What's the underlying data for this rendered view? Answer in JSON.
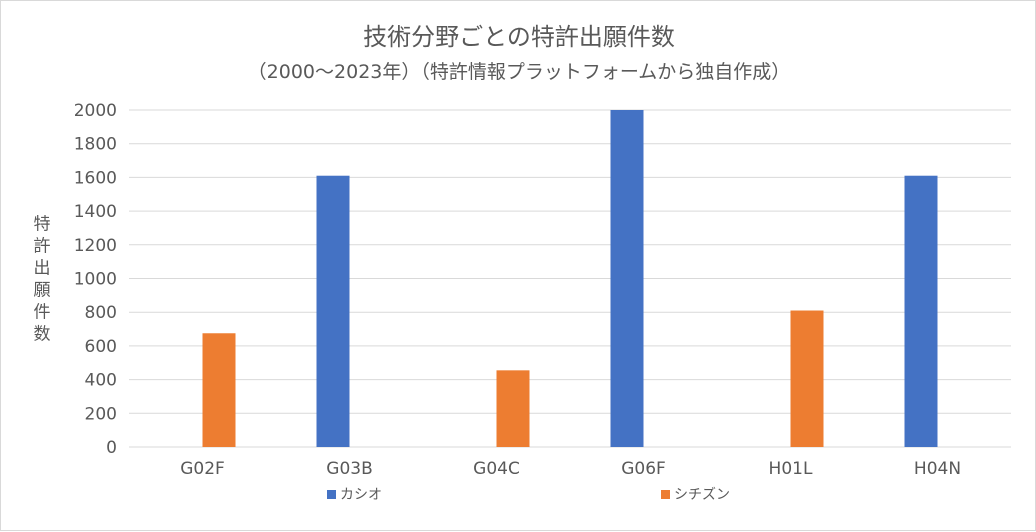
{
  "chart_data": {
    "type": "bar",
    "title": "技術分野ごとの特許出願件数",
    "subtitle": "（2000～2023年）（特許情報プラットフォームから独自作成）",
    "ylabel": "特許出願件数",
    "xlabel": "",
    "categories": [
      "G02F",
      "G03B",
      "G04C",
      "G06F",
      "H01L",
      "H04N"
    ],
    "series": [
      {
        "name": "カシオ",
        "color": "#4472C4",
        "values": [
          null,
          1610,
          null,
          2000,
          null,
          1610
        ]
      },
      {
        "name": "シチズン",
        "color": "#ED7D31",
        "values": [
          675,
          null,
          455,
          null,
          810,
          null
        ]
      }
    ],
    "ylim": [
      0,
      2000
    ],
    "yticks": [
      0,
      200,
      400,
      600,
      800,
      1000,
      1200,
      1400,
      1600,
      1800,
      2000
    ],
    "grid": true,
    "legend_position": "bottom"
  }
}
